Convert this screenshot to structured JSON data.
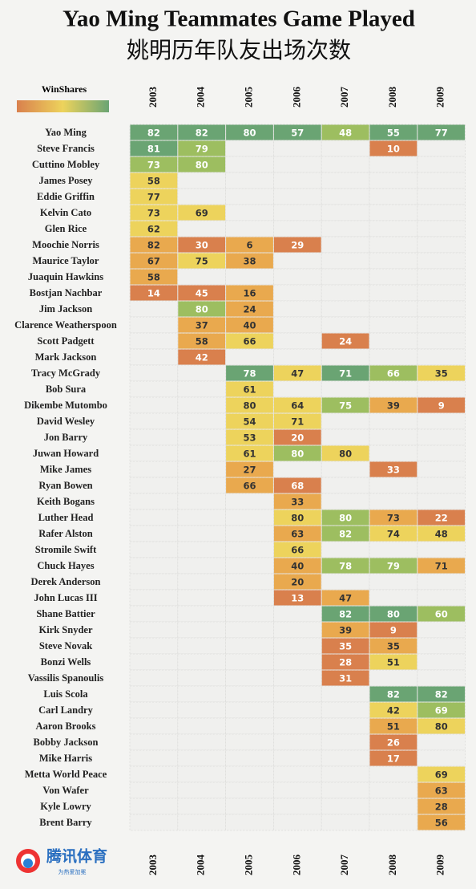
{
  "chart_data": {
    "type": "heatmap",
    "title": "Yao Ming Teammates Game Played",
    "subtitle": "姚明历年队友出场次数",
    "legend_title": "WinShares",
    "legend_colors": [
      "#d9804d",
      "#edd35c",
      "#6aa473"
    ],
    "x": [
      "2003",
      "2004",
      "2005",
      "2006",
      "2007",
      "2008",
      "2009"
    ],
    "y": [
      "Yao Ming",
      "Steve Francis",
      "Cuttino Mobley",
      "James Posey",
      "Eddie Griffin",
      "Kelvin Cato",
      "Glen Rice",
      "Moochie Norris",
      "Maurice Taylor",
      "Juaquin Hawkins",
      "Bostjan Nachbar",
      "Jim Jackson",
      "Clarence Weatherspoon",
      "Scott Padgett",
      "Mark Jackson",
      "Tracy McGrady",
      "Bob Sura",
      "Dikembe Mutombo",
      "David Wesley",
      "Jon Barry",
      "Juwan Howard",
      "Mike James",
      "Ryan Bowen",
      "Keith Bogans",
      "Luther Head",
      "Rafer Alston",
      "Stromile Swift",
      "Chuck Hayes",
      "Derek Anderson",
      "John Lucas III",
      "Shane Battier",
      "Kirk Snyder",
      "Steve Novak",
      "Bonzi Wells",
      "Vassilis Spanoulis",
      "Luis Scola",
      "Carl Landry",
      "Aaron Brooks",
      "Bobby Jackson",
      "Mike Harris",
      "Metta World Peace",
      "Von Wafer",
      "Kyle Lowry",
      "Brent Barry"
    ],
    "values": [
      [
        82,
        82,
        80,
        57,
        48,
        55,
        77
      ],
      [
        81,
        79,
        null,
        null,
        null,
        10,
        null
      ],
      [
        73,
        80,
        null,
        null,
        null,
        null,
        null
      ],
      [
        58,
        null,
        null,
        null,
        null,
        null,
        null
      ],
      [
        77,
        null,
        null,
        null,
        null,
        null,
        null
      ],
      [
        73,
        69,
        null,
        null,
        null,
        null,
        null
      ],
      [
        62,
        null,
        null,
        null,
        null,
        null,
        null
      ],
      [
        82,
        30,
        6,
        29,
        null,
        null,
        null
      ],
      [
        67,
        75,
        38,
        null,
        null,
        null,
        null
      ],
      [
        58,
        null,
        null,
        null,
        null,
        null,
        null
      ],
      [
        14,
        45,
        16,
        null,
        null,
        null,
        null
      ],
      [
        null,
        80,
        24,
        null,
        null,
        null,
        null
      ],
      [
        null,
        37,
        40,
        null,
        null,
        null,
        null
      ],
      [
        null,
        58,
        66,
        null,
        24,
        null,
        null
      ],
      [
        null,
        42,
        null,
        null,
        null,
        null,
        null
      ],
      [
        null,
        null,
        78,
        47,
        71,
        66,
        35
      ],
      [
        null,
        null,
        61,
        null,
        null,
        null,
        null
      ],
      [
        null,
        null,
        80,
        64,
        75,
        39,
        9
      ],
      [
        null,
        null,
        54,
        71,
        null,
        null,
        null
      ],
      [
        null,
        null,
        53,
        20,
        null,
        null,
        null
      ],
      [
        null,
        null,
        61,
        80,
        80,
        null,
        null
      ],
      [
        null,
        null,
        27,
        null,
        null,
        33,
        null
      ],
      [
        null,
        null,
        66,
        68,
        null,
        null,
        null
      ],
      [
        null,
        null,
        null,
        33,
        null,
        null,
        null
      ],
      [
        null,
        null,
        null,
        80,
        80,
        73,
        22
      ],
      [
        null,
        null,
        null,
        63,
        82,
        74,
        48
      ],
      [
        null,
        null,
        null,
        66,
        null,
        null,
        null
      ],
      [
        null,
        null,
        null,
        40,
        78,
        79,
        71
      ],
      [
        null,
        null,
        null,
        20,
        null,
        null,
        null
      ],
      [
        null,
        null,
        null,
        13,
        47,
        null,
        null
      ],
      [
        null,
        null,
        null,
        null,
        82,
        80,
        60
      ],
      [
        null,
        null,
        null,
        null,
        39,
        9,
        null
      ],
      [
        null,
        null,
        null,
        null,
        35,
        35,
        null
      ],
      [
        null,
        null,
        null,
        null,
        28,
        51,
        null
      ],
      [
        null,
        null,
        null,
        null,
        31,
        null,
        null
      ],
      [
        null,
        null,
        null,
        null,
        null,
        82,
        82
      ],
      [
        null,
        null,
        null,
        null,
        null,
        42,
        69
      ],
      [
        null,
        null,
        null,
        null,
        null,
        51,
        80
      ],
      [
        null,
        null,
        null,
        null,
        null,
        26,
        null
      ],
      [
        null,
        null,
        null,
        null,
        null,
        17,
        null
      ],
      [
        null,
        null,
        null,
        null,
        null,
        null,
        69
      ],
      [
        null,
        null,
        null,
        null,
        null,
        null,
        63
      ],
      [
        null,
        null,
        null,
        null,
        null,
        null,
        28
      ],
      [
        null,
        null,
        null,
        null,
        null,
        null,
        56
      ]
    ],
    "colors": [
      [
        "#6aa473",
        "#6aa473",
        "#6aa473",
        "#6aa473",
        "#9dbe60",
        "#6aa473",
        "#6aa473"
      ],
      [
        "#6aa473",
        "#9dbe60",
        null,
        null,
        null,
        "#d9804d",
        null
      ],
      [
        "#9dbe60",
        "#9dbe60",
        null,
        null,
        null,
        null,
        null
      ],
      [
        "#edd35c",
        null,
        null,
        null,
        null,
        null,
        null
      ],
      [
        "#edd35c",
        null,
        null,
        null,
        null,
        null,
        null
      ],
      [
        "#edd35c",
        "#edd35c",
        null,
        null,
        null,
        null,
        null
      ],
      [
        "#edd35c",
        null,
        null,
        null,
        null,
        null,
        null
      ],
      [
        "#e9a94e",
        "#d9804d",
        "#e9a94e",
        "#d9804d",
        null,
        null,
        null
      ],
      [
        "#e9a94e",
        "#edd35c",
        "#e9a94e",
        null,
        null,
        null,
        null
      ],
      [
        "#e9a94e",
        null,
        null,
        null,
        null,
        null,
        null
      ],
      [
        "#d9804d",
        "#d9804d",
        "#e9a94e",
        null,
        null,
        null,
        null
      ],
      [
        null,
        "#9dbe60",
        "#e9a94e",
        null,
        null,
        null,
        null
      ],
      [
        null,
        "#e9a94e",
        "#e9a94e",
        null,
        null,
        null,
        null
      ],
      [
        null,
        "#e9a94e",
        "#edd35c",
        null,
        "#d9804d",
        null,
        null
      ],
      [
        null,
        "#d9804d",
        null,
        null,
        null,
        null,
        null
      ],
      [
        null,
        null,
        "#6aa473",
        "#edd35c",
        "#6aa473",
        "#9dbe60",
        "#edd35c"
      ],
      [
        null,
        null,
        "#edd35c",
        null,
        null,
        null,
        null
      ],
      [
        null,
        null,
        "#edd35c",
        "#edd35c",
        "#9dbe60",
        "#e9a94e",
        "#d9804d"
      ],
      [
        null,
        null,
        "#edd35c",
        "#edd35c",
        null,
        null,
        null
      ],
      [
        null,
        null,
        "#edd35c",
        "#d9804d",
        null,
        null,
        null
      ],
      [
        null,
        null,
        "#edd35c",
        "#9dbe60",
        "#edd35c",
        null,
        null
      ],
      [
        null,
        null,
        "#e9a94e",
        null,
        null,
        "#d9804d",
        null
      ],
      [
        null,
        null,
        "#e9a94e",
        "#d9804d",
        null,
        null,
        null
      ],
      [
        null,
        null,
        null,
        "#e9a94e",
        null,
        null,
        null
      ],
      [
        null,
        null,
        null,
        "#edd35c",
        "#9dbe60",
        "#e9a94e",
        "#d9804d"
      ],
      [
        null,
        null,
        null,
        "#e9a94e",
        "#9dbe60",
        "#edd35c",
        "#edd35c"
      ],
      [
        null,
        null,
        null,
        "#edd35c",
        null,
        null,
        null
      ],
      [
        null,
        null,
        null,
        "#e9a94e",
        "#9dbe60",
        "#9dbe60",
        "#e9a94e"
      ],
      [
        null,
        null,
        null,
        "#e9a94e",
        null,
        null,
        null
      ],
      [
        null,
        null,
        null,
        "#d9804d",
        "#e9a94e",
        null,
        null
      ],
      [
        null,
        null,
        null,
        null,
        "#6aa473",
        "#6aa473",
        "#9dbe60"
      ],
      [
        null,
        null,
        null,
        null,
        "#e9a94e",
        "#d9804d",
        null
      ],
      [
        null,
        null,
        null,
        null,
        "#d9804d",
        "#e9a94e",
        null
      ],
      [
        null,
        null,
        null,
        null,
        "#d9804d",
        "#edd35c",
        null
      ],
      [
        null,
        null,
        null,
        null,
        "#d9804d",
        null,
        null
      ],
      [
        null,
        null,
        null,
        null,
        null,
        "#6aa473",
        "#6aa473"
      ],
      [
        null,
        null,
        null,
        null,
        null,
        "#edd35c",
        "#9dbe60"
      ],
      [
        null,
        null,
        null,
        null,
        null,
        "#e9a94e",
        "#edd35c"
      ],
      [
        null,
        null,
        null,
        null,
        null,
        "#d9804d",
        null
      ],
      [
        null,
        null,
        null,
        null,
        null,
        "#d9804d",
        null
      ],
      [
        null,
        null,
        null,
        null,
        null,
        null,
        "#edd35c"
      ],
      [
        null,
        null,
        null,
        null,
        null,
        null,
        "#e9a94e"
      ],
      [
        null,
        null,
        null,
        null,
        null,
        null,
        "#e9a94e"
      ],
      [
        null,
        null,
        null,
        null,
        null,
        null,
        "#e9a94e"
      ]
    ]
  },
  "logo": {
    "name": "腾讯体育",
    "slogan": "为热爱加冕"
  }
}
